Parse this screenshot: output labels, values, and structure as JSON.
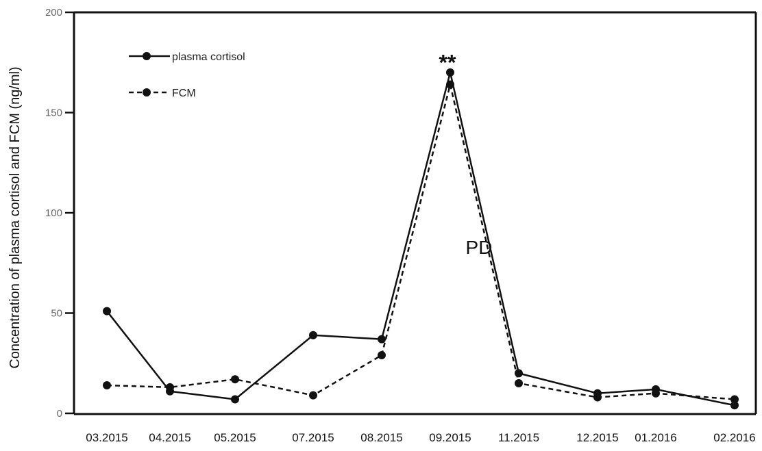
{
  "chart_data": {
    "type": "line",
    "title": "",
    "xlabel": "",
    "ylabel": "Concentration of  plasma cortisol and FCM (ng/ml)",
    "categories": [
      "03.2015",
      "04.2015",
      "05.2015",
      "07.2015",
      "08.2015",
      "09.2015",
      "11.2015",
      "12.2015",
      "01.2016",
      "02.2016"
    ],
    "ylim": [
      0,
      200
    ],
    "yticks": [
      "0",
      "50",
      "100",
      "150",
      "200"
    ],
    "grid": false,
    "legend_position": "top-left",
    "series": [
      {
        "name": "plasma cortisol",
        "style": "solid",
        "color": "#111111",
        "values": [
          51,
          11,
          7,
          39,
          37,
          170,
          20,
          10,
          12,
          4
        ]
      },
      {
        "name": "FCM",
        "style": "dashed",
        "color": "#111111",
        "values": [
          14,
          13,
          17,
          9,
          29,
          164,
          15,
          8,
          10,
          7
        ]
      }
    ],
    "annotations": [
      {
        "text": "**",
        "x": "09.2015",
        "y": 176
      },
      {
        "text": "PD",
        "x": "09.2015",
        "y": 83
      }
    ]
  }
}
